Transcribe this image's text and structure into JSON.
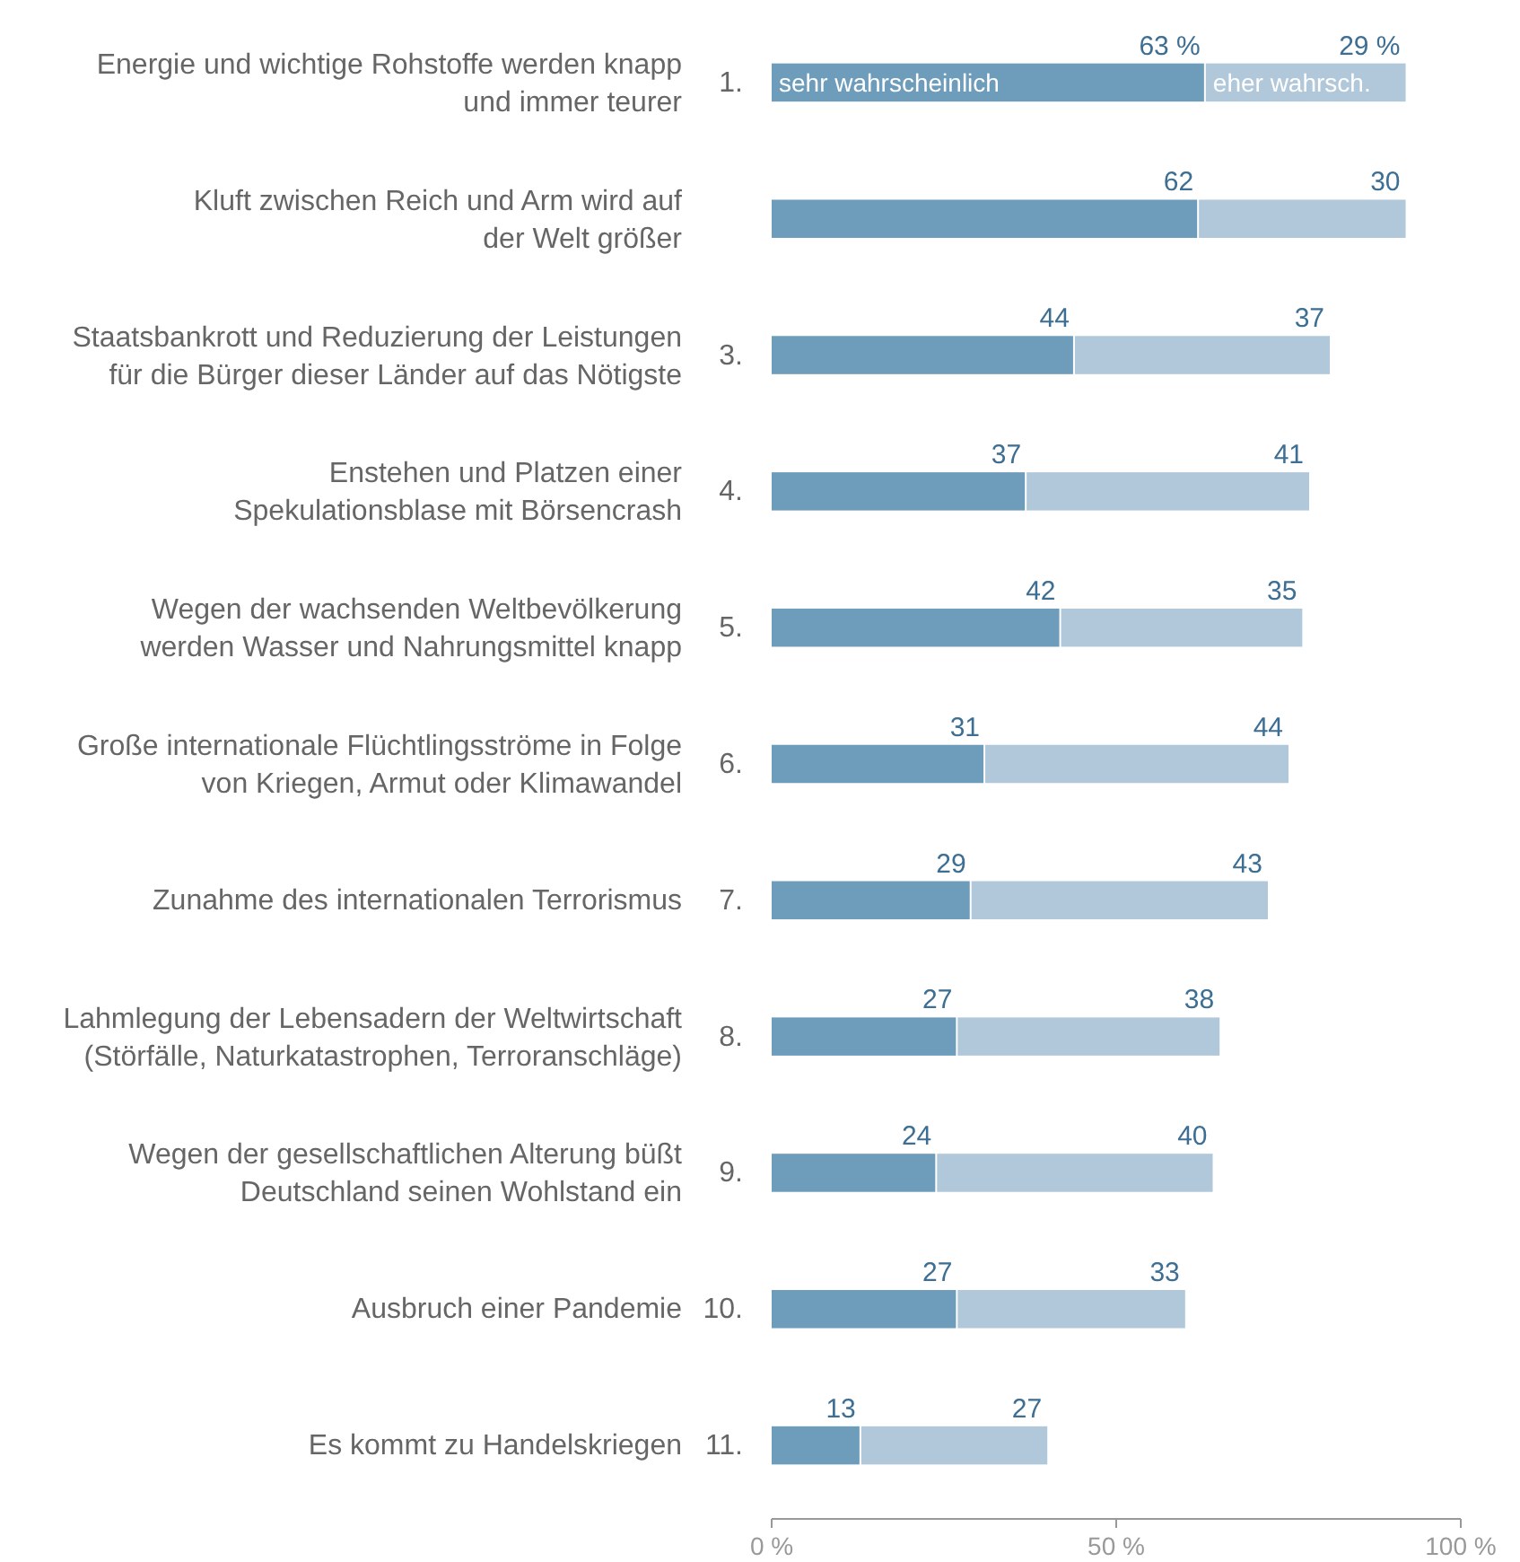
{
  "chart_data": {
    "type": "bar",
    "orientation": "horizontal",
    "stacked": true,
    "categories": [
      "Energie und wichtige Rohstoffe werden knapp\nund immer teurer",
      "Kluft zwischen Reich und Arm wird auf\nder Welt größer",
      "Staatsbankrott und Reduzierung der Leistungen\nfür die Bürger dieser Länder auf das Nötigste",
      "Enstehen und Platzen einer\nSpekulationsblase mit Börsencrash",
      "Wegen der wachsenden Weltbevölkerung\nwerden Wasser und Nahrungsmittel knapp",
      "Große internationale Flüchtlingsströme in Folge\nvon Kriegen, Armut oder Klimawandel",
      "Zunahme des internationalen Terrorismus",
      "Lahmlegung der Lebensadern der Weltwirtschaft\n(Störfälle, Naturkatastrophen, Terroranschläge)",
      "Wegen der gesellschaftlichen Alterung büßt\nDeutschland seinen Wohlstand ein",
      "Ausbruch einer Pandemie",
      "Es kommt zu Handelskriegen"
    ],
    "annotations": [
      "1.",
      null,
      "3.",
      "4.",
      "5.",
      "6.",
      "7.",
      "8.",
      "9.",
      "10.",
      "11."
    ],
    "series": [
      {
        "name": "sehr wahrscheinlich",
        "color": "#6e9cbb",
        "values": [
          63,
          62,
          44,
          37,
          42,
          31,
          29,
          27,
          24,
          27,
          13
        ],
        "value_labels": [
          "63 %",
          "62",
          "44",
          "37",
          "42",
          "31",
          "29",
          "27",
          "24",
          "27",
          "13"
        ]
      },
      {
        "name": "eher wahrsch.",
        "color": "#b0c8da",
        "values": [
          29,
          30,
          37,
          41,
          35,
          44,
          43,
          38,
          40,
          33,
          27
        ],
        "value_labels": [
          "29 %",
          "30",
          "37",
          "41",
          "35",
          "44",
          "43",
          "38",
          "40",
          "33",
          "27"
        ]
      }
    ],
    "xlim": [
      0,
      100
    ],
    "xticks": [
      {
        "value": 0,
        "label": "0 %"
      },
      {
        "value": 50,
        "label": "50 %"
      },
      {
        "value": 100,
        "label": "100 %"
      }
    ]
  }
}
